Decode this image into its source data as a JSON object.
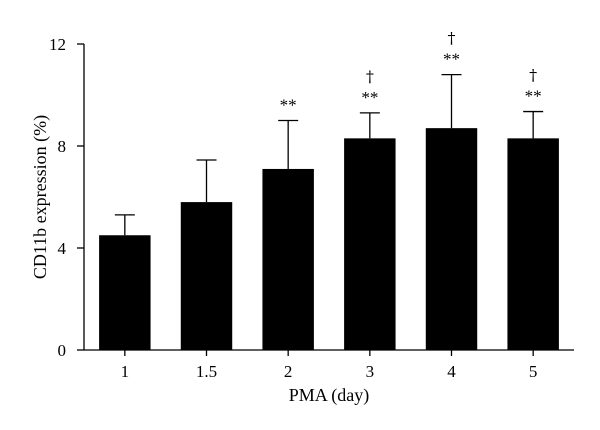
{
  "chart_data": {
    "type": "bar",
    "xlabel": "PMA (day)",
    "ylabel": "CD11b expression (%)",
    "ylim": [
      0,
      12
    ],
    "yticks": [
      0,
      4,
      8,
      12
    ],
    "grid": false,
    "categories": [
      "1",
      "1.5",
      "2",
      "3",
      "4",
      "5"
    ],
    "values": [
      4.5,
      5.8,
      7.1,
      8.3,
      8.7,
      8.3
    ],
    "error_upper": [
      0.8,
      1.65,
      1.9,
      1.0,
      2.1,
      1.05
    ],
    "annotations": [
      {
        "category": "2",
        "significance": "**",
        "dagger": ""
      },
      {
        "category": "3",
        "significance": "**",
        "dagger": "†"
      },
      {
        "category": "4",
        "significance": "**",
        "dagger": "†"
      },
      {
        "category": "5",
        "significance": "**",
        "dagger": "†"
      }
    ],
    "colors": {
      "bar": "#000000",
      "axis": "#000000"
    }
  }
}
